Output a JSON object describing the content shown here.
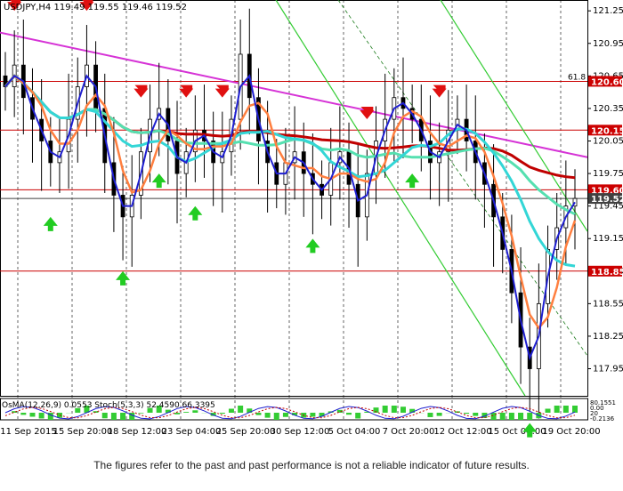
{
  "chart_data": {
    "type": "candlestick",
    "symbol_line": "USDJPY,H4  119.49 119.55 119.46 119.52",
    "ylim": [
      117.7,
      121.35
    ],
    "price_ticks": [
      121.25,
      120.95,
      120.65,
      120.35,
      120.05,
      119.75,
      119.45,
      119.15,
      118.85,
      118.55,
      118.25,
      117.95
    ],
    "x_tick_labels": [
      "11 Sep 2015",
      "15 Sep 20:00",
      "18 Sep 12:00",
      "23 Sep 04:00",
      "25 Sep 20:00",
      "30 Sep 12:00",
      "5 Oct 04:00",
      "7 Oct 20:00",
      "12 Oct 12:00",
      "15 Oct 04:00",
      "19 Oct 20:00"
    ],
    "horizontal_levels": [
      {
        "label": "120.60",
        "value": 120.6,
        "color": "#cc0000"
      },
      {
        "label": "120.15",
        "value": 120.15,
        "color": "#cc0000"
      },
      {
        "label": "119.60",
        "value": 119.6,
        "color": "#cc0000"
      },
      {
        "label": "119.52",
        "value": 119.52,
        "color": "#404040"
      },
      {
        "label": "118.85",
        "value": 118.85,
        "color": "#cc0000"
      }
    ],
    "fib_label": "61.8",
    "close_series": [
      120.55,
      120.75,
      120.45,
      120.25,
      120.05,
      119.85,
      119.95,
      120.25,
      120.55,
      120.75,
      120.35,
      119.85,
      119.55,
      119.35,
      119.55,
      119.95,
      120.25,
      120.35,
      120.05,
      119.75,
      119.95,
      120.15,
      120.05,
      119.85,
      119.95,
      120.25,
      120.85,
      120.45,
      120.05,
      119.85,
      119.65,
      119.85,
      119.95,
      119.75,
      119.65,
      119.55,
      119.85,
      119.95,
      119.65,
      119.35,
      119.75,
      120.05,
      120.25,
      120.45,
      120.35,
      120.25,
      120.05,
      119.85,
      119.95,
      120.15,
      120.25,
      120.05,
      119.85,
      119.65,
      119.35,
      119.05,
      118.65,
      118.15,
      117.95,
      118.55,
      119.05,
      119.25,
      119.45,
      119.52
    ],
    "indicator_label": "OsMA(12,26,9) 0.0553  Stoch(5,3,3) 52.4590 66.3395",
    "indicator_scale": [
      "80.1551",
      "0.00",
      "20",
      "-0.2136"
    ],
    "signal_arrows": {
      "down": [
        1,
        9,
        15,
        20,
        24,
        40,
        48
      ],
      "up": [
        5,
        13,
        17,
        21,
        34,
        45,
        58
      ]
    },
    "colors": {
      "bull_candle": "#ffffff",
      "bear_candle": "#000000",
      "ma_fast": "#1f1fd0",
      "ma_orange": "#ff7f3f",
      "ma_red": "#c00000",
      "ma_cyan": "#33d6d6",
      "ma_teal": "#55e0b0",
      "trend_magenta": "#d633d6",
      "channel_green": "#33cc33",
      "arrow_down": "#e01010",
      "arrow_up": "#22cc22",
      "osma_bars": "#33cc33"
    }
  },
  "footer": {
    "disclaimer": "The figures refer to the past and past performance is not a reliable indicator of future results."
  }
}
